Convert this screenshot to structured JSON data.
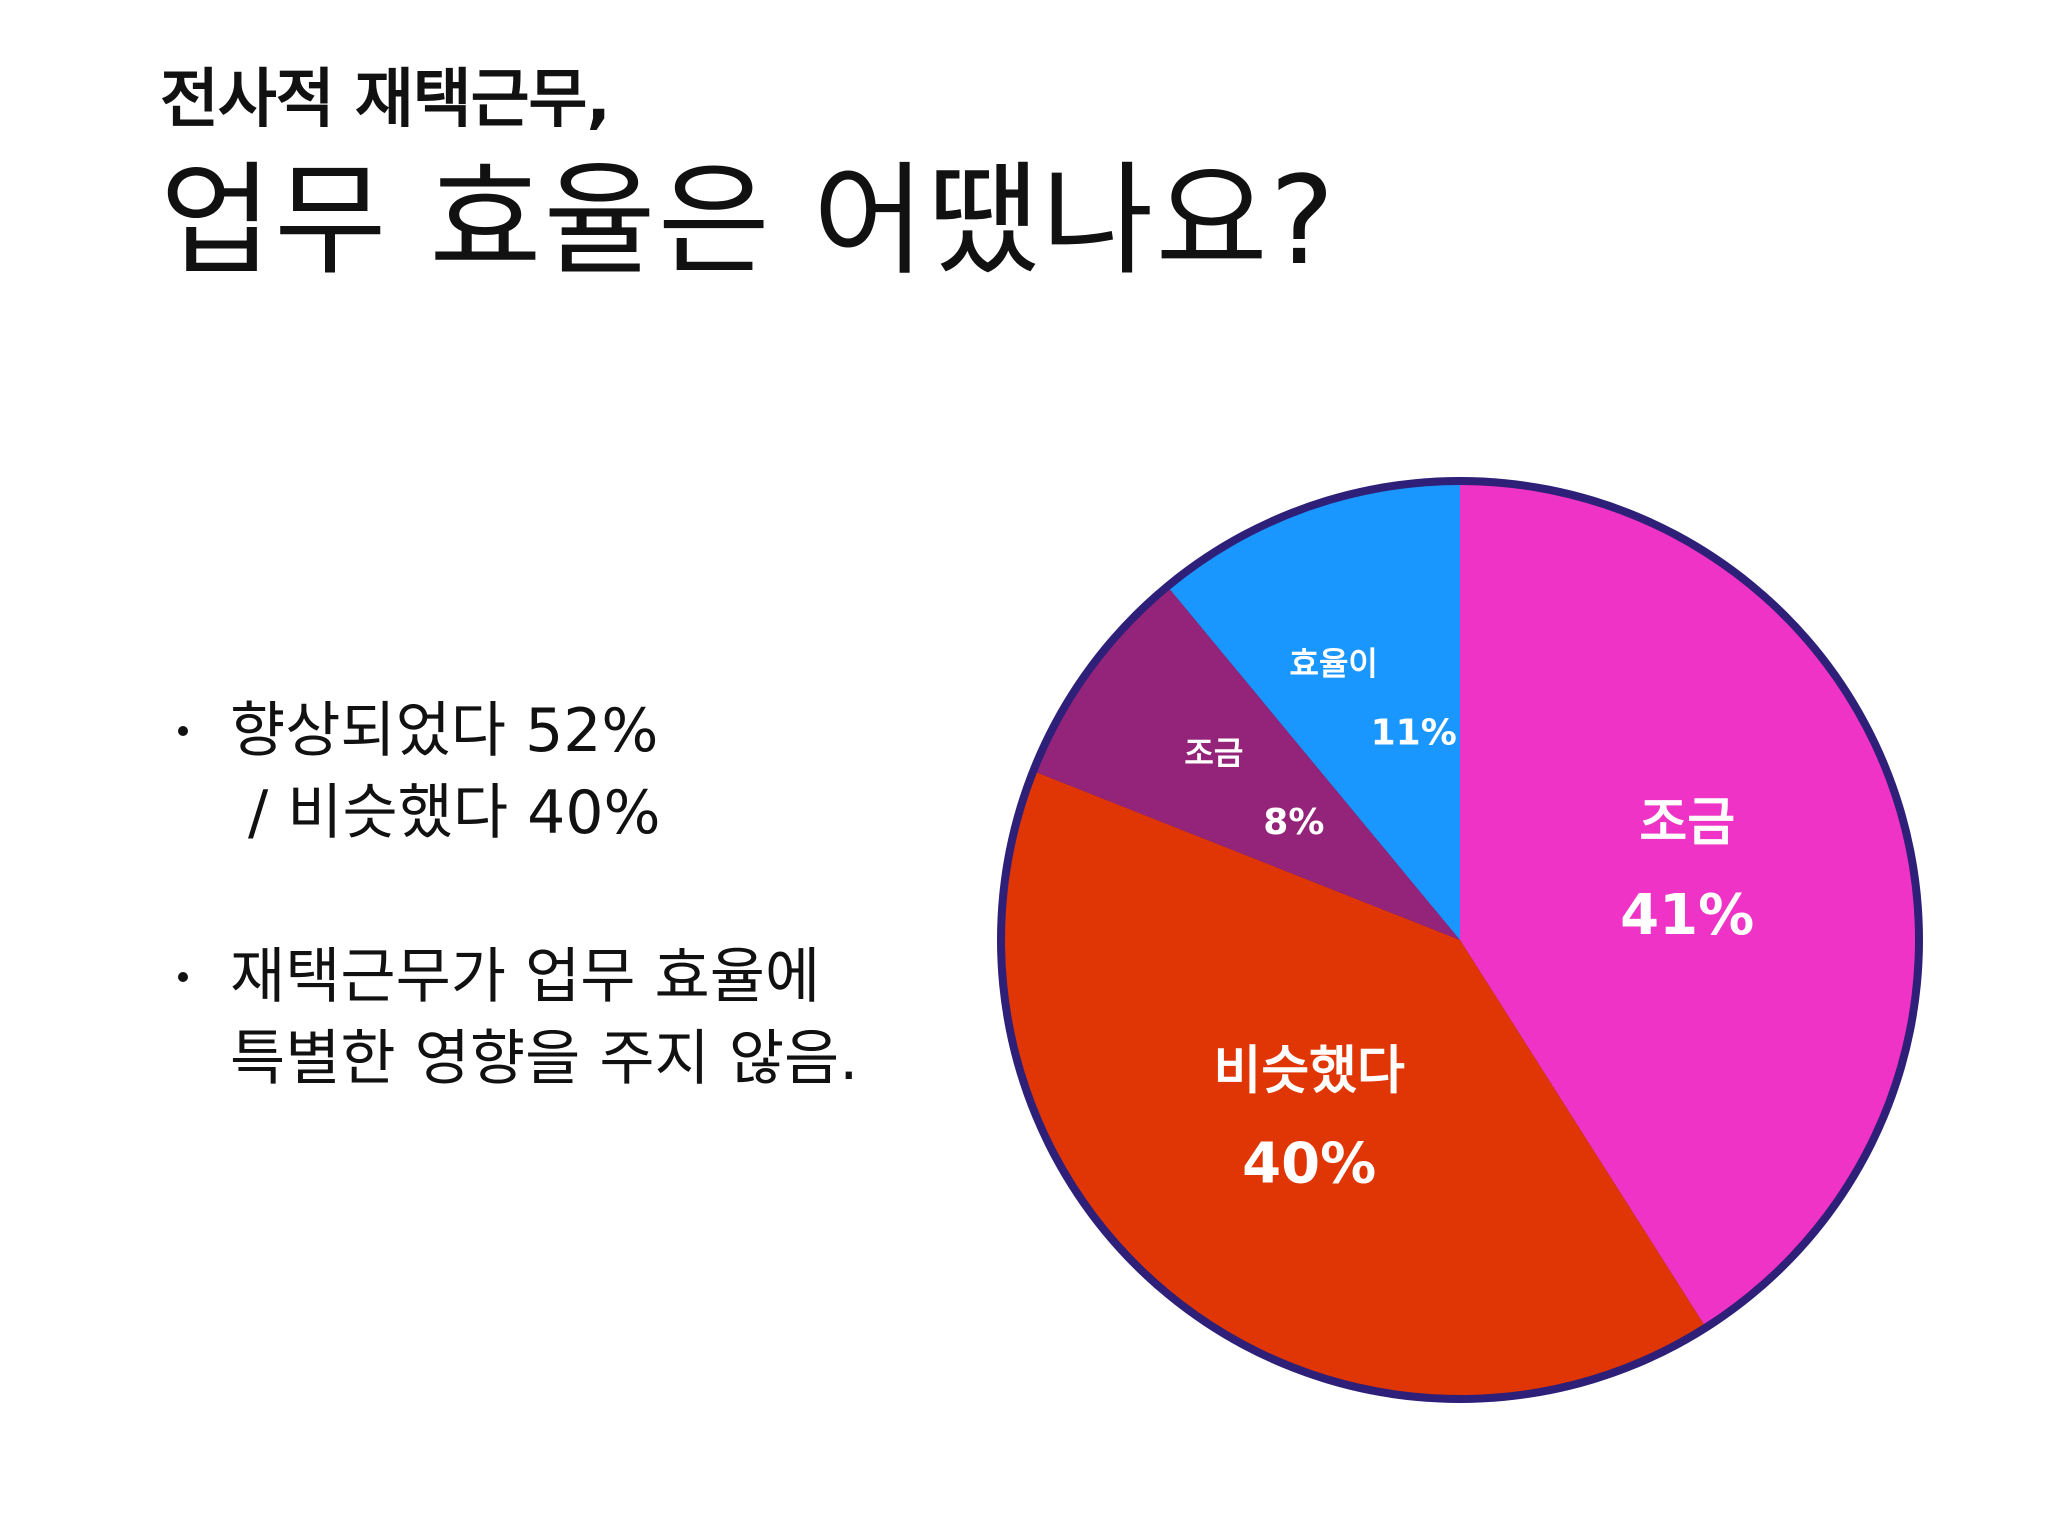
{
  "slide": {
    "title_line1": "전사적 재택근무,",
    "title_line2": "업무 효율은 어땠나요?"
  },
  "bullets": [
    {
      "lines": [
        "향상되었다 52%",
        "/ 비슷했다 40%"
      ]
    },
    {
      "lines": [
        "재택근무가 업무 효율에",
        "특별한 영향을 주지 않음."
      ]
    }
  ],
  "chart_data": {
    "type": "pie",
    "title": "",
    "border_color": "#2e1f78",
    "slices": [
      {
        "label": "조금",
        "percent_label": "41%",
        "value": 41,
        "color": "#ee33c6",
        "label_size": "large"
      },
      {
        "label": "비슷했다",
        "percent_label": "40%",
        "value": 40,
        "color": "#e03504",
        "label_size": "large"
      },
      {
        "label": "조금",
        "percent_label": "8%",
        "value": 8,
        "color": "#932479",
        "label_size": "small"
      },
      {
        "label": "효율이",
        "percent_label": "11%",
        "value": 11,
        "color": "#1a96ff",
        "label_size": "small"
      }
    ]
  }
}
